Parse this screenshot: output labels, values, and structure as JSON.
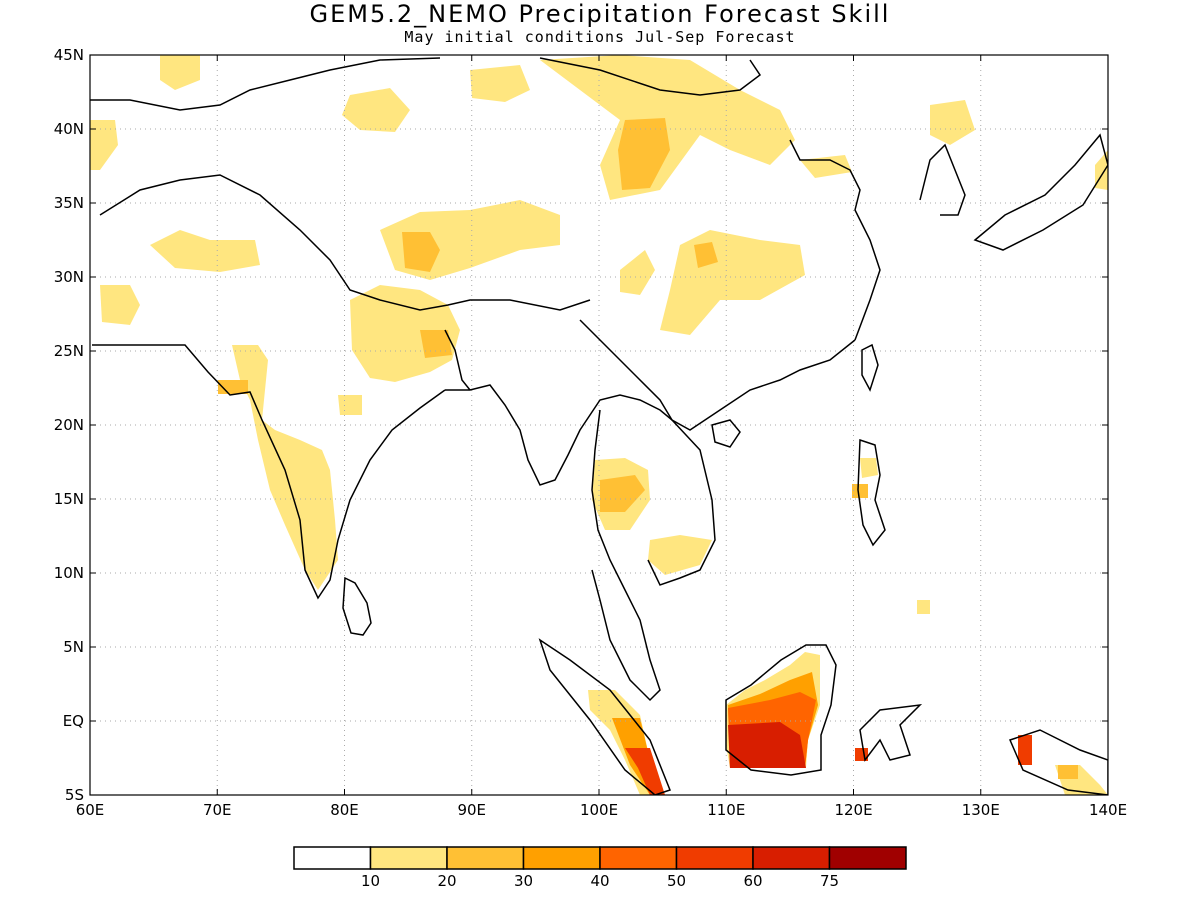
{
  "title": "GEM5.2_NEMO Precipitation Forecast Skill",
  "subtitle": "May initial conditions   Jul-Sep Forecast",
  "map": {
    "lon_range": [
      60,
      140
    ],
    "lat_range": [
      -5,
      45
    ],
    "x_ticks": [
      {
        "v": 60,
        "label": "60E"
      },
      {
        "v": 70,
        "label": "70E"
      },
      {
        "v": 80,
        "label": "80E"
      },
      {
        "v": 90,
        "label": "90E"
      },
      {
        "v": 100,
        "label": "100E"
      },
      {
        "v": 110,
        "label": "110E"
      },
      {
        "v": 120,
        "label": "120E"
      },
      {
        "v": 130,
        "label": "130E"
      },
      {
        "v": 140,
        "label": "140E"
      }
    ],
    "y_ticks": [
      {
        "v": 45,
        "label": "45N"
      },
      {
        "v": 40,
        "label": "40N"
      },
      {
        "v": 35,
        "label": "35N"
      },
      {
        "v": 30,
        "label": "30N"
      },
      {
        "v": 25,
        "label": "25N"
      },
      {
        "v": 20,
        "label": "20N"
      },
      {
        "v": 15,
        "label": "15N"
      },
      {
        "v": 10,
        "label": "10N"
      },
      {
        "v": 5,
        "label": "5N"
      },
      {
        "v": 0,
        "label": "EQ"
      },
      {
        "v": -5,
        "label": "5S"
      }
    ],
    "grid": "dotted"
  },
  "legend": {
    "labels": [
      "10",
      "20",
      "30",
      "40",
      "50",
      "60",
      "75"
    ],
    "colors": [
      "#ffffff",
      "#ffe680",
      "#ffc034",
      "#ffa000",
      "#ff6400",
      "#f03c00",
      "#d81e00",
      "#a00000"
    ]
  },
  "chart_data": {
    "type": "heatmap",
    "variable": "precipitation forecast skill",
    "units": "",
    "levels": [
      10,
      20,
      30,
      40,
      50,
      60,
      75
    ],
    "regions": [
      {
        "lon": [
          70,
          75
        ],
        "lat": [
          12,
          25
        ],
        "level": 10
      },
      {
        "lon": [
          82,
          90
        ],
        "lat": [
          21,
          30
        ],
        "level": 10
      },
      {
        "lon": [
          85,
          88
        ],
        "lat": [
          29.5,
          32.5
        ],
        "level": 20
      },
      {
        "lon": [
          86,
          92
        ],
        "lat": [
          31,
          34
        ],
        "level": 10
      },
      {
        "lon": [
          98,
          114
        ],
        "lat": [
          36,
          44
        ],
        "level": 10
      },
      {
        "lon": [
          101,
          105
        ],
        "lat": [
          37,
          40
        ],
        "level": 20
      },
      {
        "lon": [
          103,
          108
        ],
        "lat": [
          28,
          32
        ],
        "level": 10
      },
      {
        "lon": [
          99.5,
          104
        ],
        "lat": [
          13,
          16.5
        ],
        "level": 20
      },
      {
        "lon": [
          110,
          118
        ],
        "lat": [
          -3,
          2
        ],
        "level": 50
      },
      {
        "lon": [
          111,
          116
        ],
        "lat": [
          -3,
          -1
        ],
        "level": 60
      },
      {
        "lon": [
          102,
          105
        ],
        "lat": [
          -5,
          -2
        ],
        "level": 60
      },
      {
        "lon": [
          133,
          134
        ],
        "lat": [
          -3,
          -1
        ],
        "level": 50
      }
    ]
  }
}
